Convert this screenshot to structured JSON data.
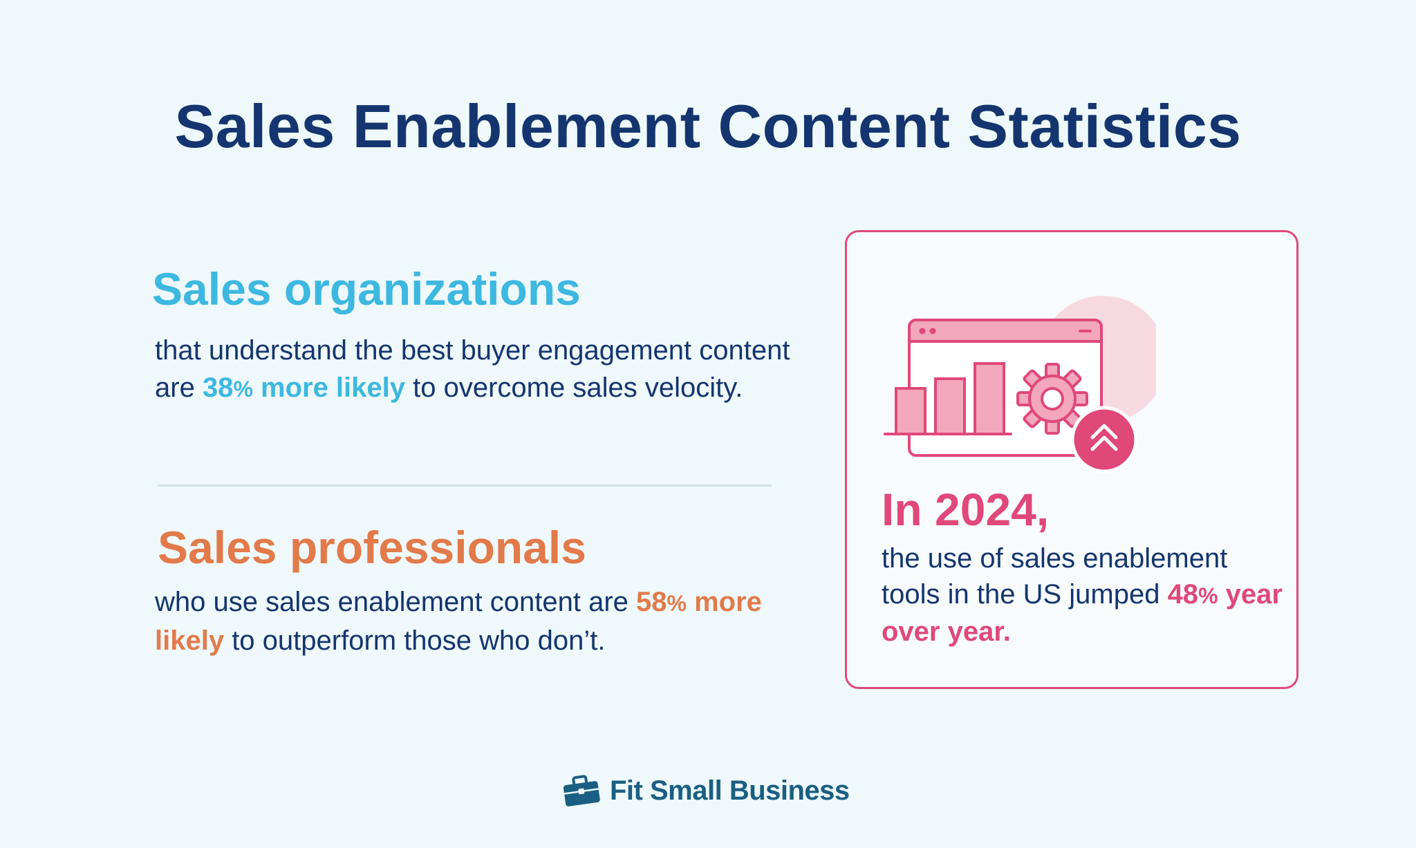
{
  "title": "Sales Enablement Content Statistics",
  "stats": [
    {
      "heading": "Sales organizations",
      "body_before": "that understand the best buyer engagement content are ",
      "highlight_number": "38",
      "highlight_percent": "%",
      "highlight_text": " more likely",
      "body_after": " to overcome sales velocity.",
      "color": "#3db8e1"
    },
    {
      "heading": "Sales professionals",
      "body_before": "who use sales enablement content are ",
      "highlight_number": "58",
      "highlight_percent": "%",
      "highlight_text": " more likely",
      "body_after": " to outperform those who don’t.",
      "color": "#e27a4a"
    }
  ],
  "card": {
    "heading": "In 2024,",
    "body_before": "the use of sales enablement tools in the US jumped ",
    "highlight_number": "48",
    "highlight_percent": "%",
    "highlight_text": " year over year.",
    "color": "#e0487a",
    "illustration": "browser-bar-chart-gear-upward-arrow-icon"
  },
  "brand": {
    "name": "Fit Small Business",
    "icon": "briefcase-icon",
    "color": "#1a5f83"
  },
  "colors": {
    "background": "#eff8fa",
    "title": "#14356f"
  }
}
